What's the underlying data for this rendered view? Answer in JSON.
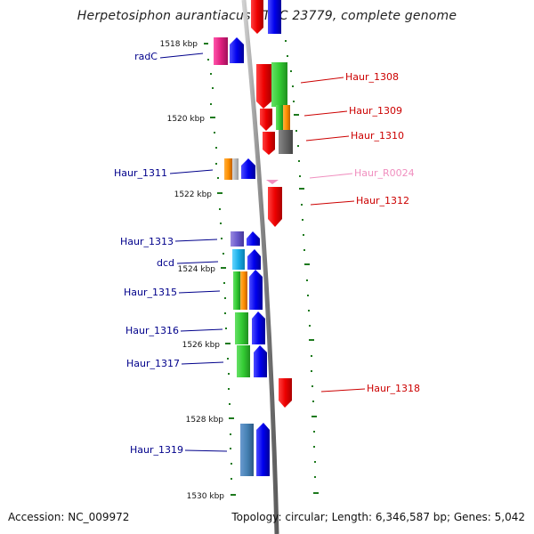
{
  "title": "Herpetosiphon aurantiacus ATCC 23779, complete genome",
  "footer": {
    "accession": "Accession: NC_009972",
    "topology": "Topology: circular; Length: 6,346,587 bp; Genes: 5,042"
  },
  "colors": {
    "backbone": "#8a8a8a",
    "tick": "#1e7a1e",
    "left_label": "#00008b",
    "right_label": "#cc0000",
    "rna_label": "#f08fbf"
  },
  "scale_labels": [
    "1518 kbp",
    "1520 kbp",
    "1522 kbp",
    "1524 kbp",
    "1526 kbp",
    "1528 kbp",
    "1530 kbp"
  ],
  "labels": {
    "left": [
      "radC",
      "Haur_1311",
      "Haur_1313",
      "dcd",
      "Haur_1315",
      "Haur_1316",
      "Haur_1317",
      "Haur_1319"
    ],
    "right": [
      "Haur_1308",
      "Haur_1309",
      "Haur_1310",
      "Haur_R0024",
      "Haur_1312",
      "Haur_1318"
    ]
  }
}
